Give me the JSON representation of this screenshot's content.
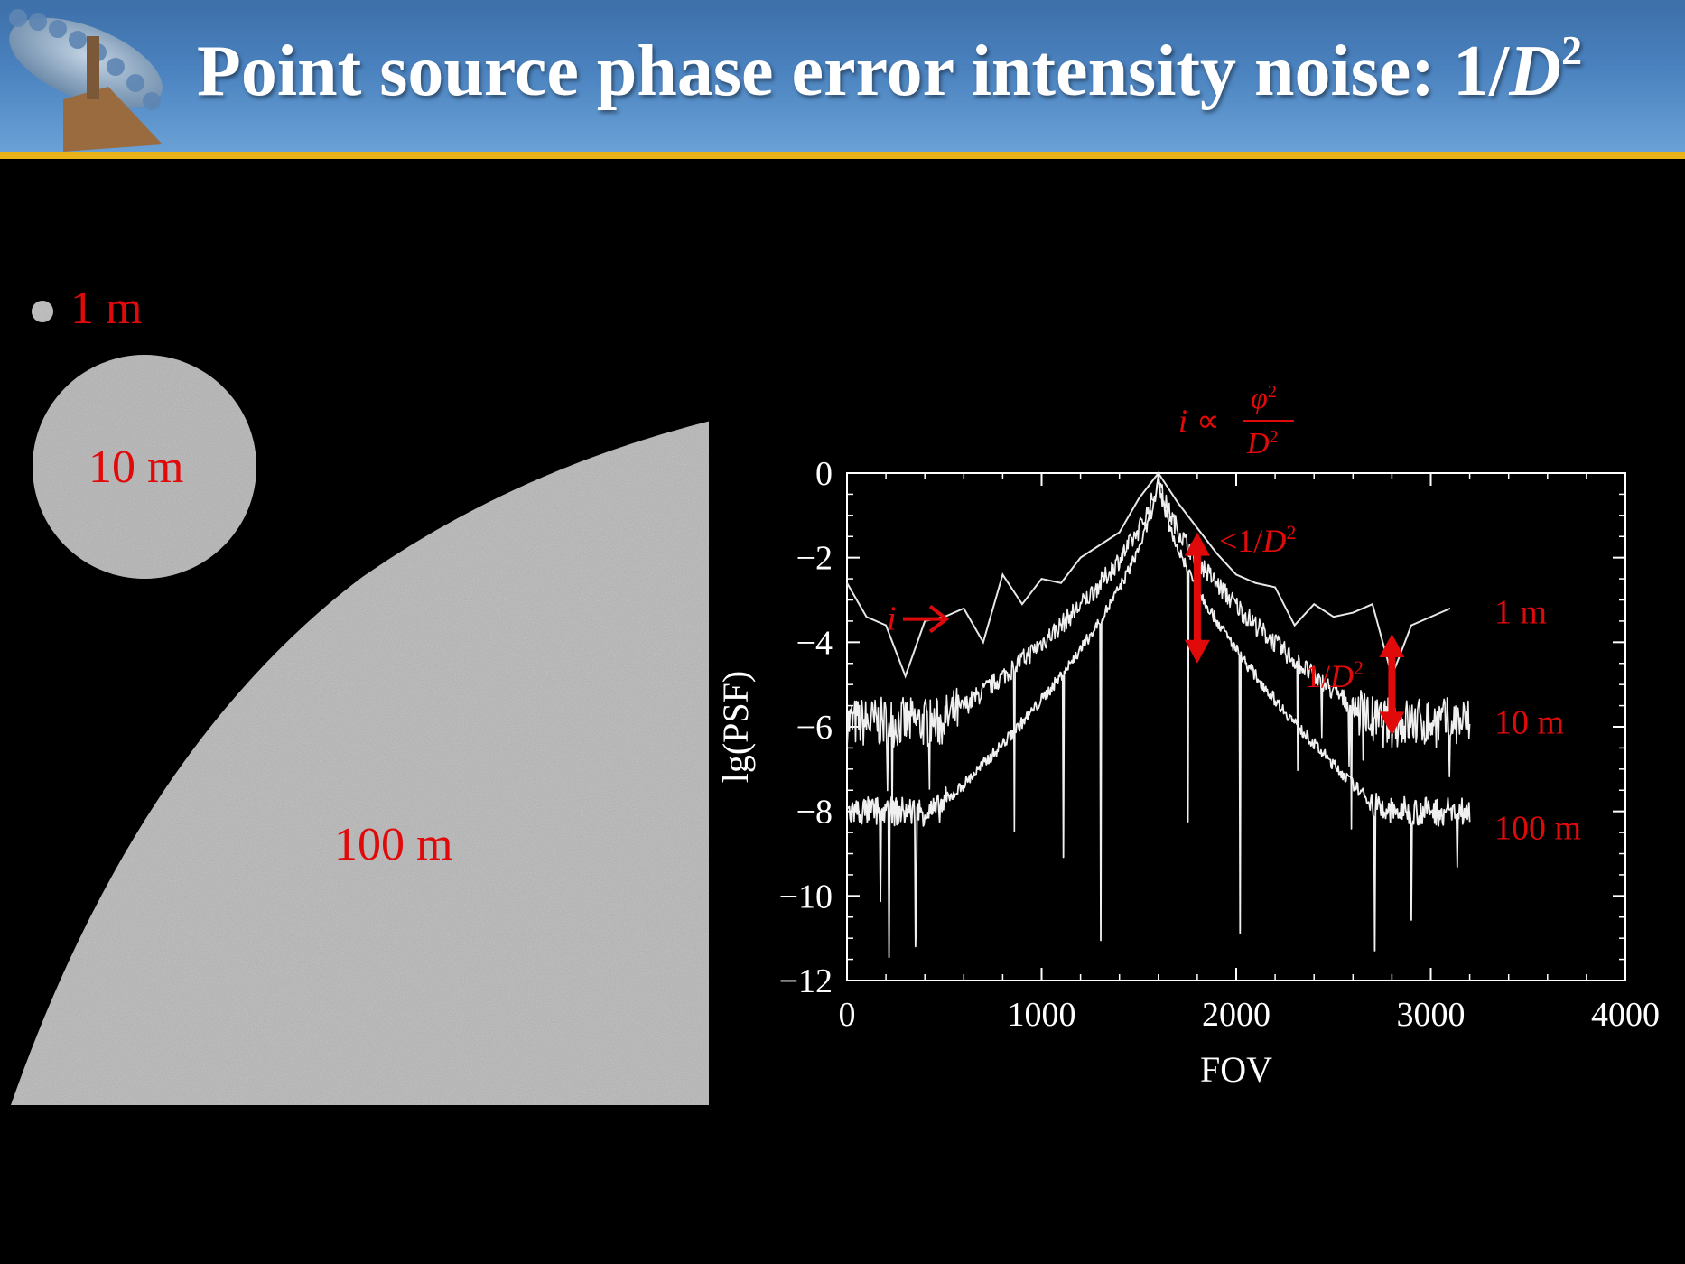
{
  "slide": {
    "title_prefix": "Point source phase error intensity noise: 1/",
    "title_var": "D",
    "title_exp": "2",
    "aperture_labels": [
      "1 m",
      "10 m",
      "100 m"
    ],
    "colors": {
      "header": "#4a82bf",
      "accent_line": "#e7b318",
      "label_red": "#e10a0a",
      "aperture_gray": "#c4c4c4"
    }
  },
  "chart_data": {
    "type": "line",
    "xlabel": "FOV",
    "ylabel": "lg(PSF)",
    "xlim": [
      0,
      4000
    ],
    "ylim": [
      -12,
      0
    ],
    "xticks": [
      0,
      1000,
      2000,
      3000,
      4000
    ],
    "yticks": [
      0,
      -2,
      -4,
      -6,
      -8,
      -10,
      -12
    ],
    "xtick_labels": [
      "0",
      "1000",
      "2000",
      "3000",
      "4000"
    ],
    "ytick_labels": [
      "0",
      "−2",
      "−4",
      "−6",
      "−8",
      "−10",
      "−12"
    ],
    "peak_x": 1600,
    "series": [
      {
        "name": "1 m",
        "x": [
          0,
          100,
          200,
          300,
          400,
          500,
          600,
          700,
          800,
          900,
          1000,
          1100,
          1200,
          1300,
          1400,
          1500,
          1600,
          1700,
          1800,
          1900,
          2000,
          2100,
          2200,
          2300,
          2400,
          2500,
          2600,
          2700,
          2800,
          2900,
          3000,
          3100
        ],
        "y": [
          -2.6,
          -3.4,
          -3.6,
          -4.8,
          -3.5,
          -3.4,
          -3.2,
          -4.0,
          -2.4,
          -3.1,
          -2.5,
          -2.6,
          -2.0,
          -1.7,
          -1.4,
          -0.6,
          0,
          -0.7,
          -1.3,
          -1.9,
          -2.4,
          -2.6,
          -2.7,
          -3.6,
          -3.1,
          -3.4,
          -3.3,
          -3.1,
          -4.8,
          -3.6,
          -3.4,
          -3.2
        ]
      },
      {
        "name": "10 m",
        "floor": -5.9,
        "noise": 0.6,
        "dips_to": -8.5
      },
      {
        "name": "100 m",
        "floor": -8.0,
        "noise": 0.35,
        "dips_to": -11.9
      }
    ],
    "annotations": {
      "formula_lhs": "i",
      "formula_prop": "∝",
      "formula_num_var": "φ",
      "formula_den_var": "D",
      "formula_exp": "2",
      "lt_prefix": "<1/",
      "inv_prefix": "1/",
      "var_d": "D",
      "exp2": "2",
      "i_label": "i",
      "arrow1_x": 1800,
      "arrow1_y": [
        -1.4,
        -4.5
      ],
      "arrow2_x": 2800,
      "arrow2_y": [
        -3.8,
        -6.2
      ]
    }
  }
}
